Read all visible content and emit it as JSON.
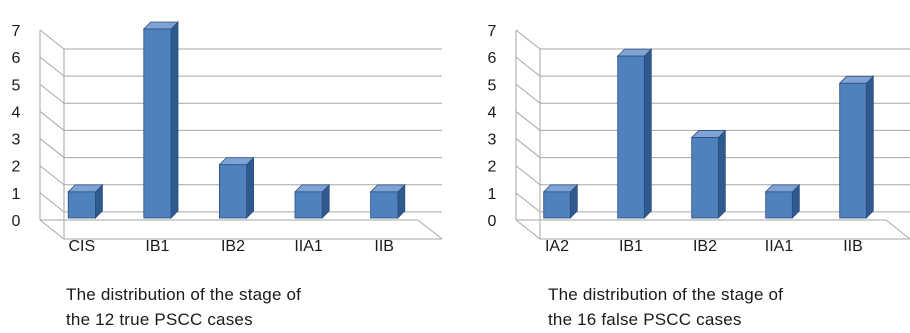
{
  "colors": {
    "bar_front": "#4f81bd",
    "bar_side": "#2f5a8f",
    "bar_top": "#7ea3d4",
    "bar_edge": "#2a4f7d",
    "gridline": "#a6a6a6",
    "axis_text": "#1a1a1a"
  },
  "chart_data": [
    {
      "type": "bar",
      "style": "3d-column",
      "categories": [
        "CIS",
        "IB1",
        "IB2",
        "IIA1",
        "IIB"
      ],
      "values": [
        1,
        7,
        2,
        1,
        1
      ],
      "ylim": [
        0,
        7
      ],
      "yticks": [
        "0",
        "1",
        "2",
        "3",
        "4",
        "5",
        "6",
        "7"
      ],
      "grid": true,
      "legend": "none",
      "caption_line1": "The distribution of the stage of",
      "caption_line2": "the 12 true PSCC cases"
    },
    {
      "type": "bar",
      "style": "3d-column",
      "categories": [
        "IA2",
        "IB1",
        "IB2",
        "IIA1",
        "IIB"
      ],
      "values": [
        1,
        6,
        3,
        1,
        5
      ],
      "ylim": [
        0,
        7
      ],
      "yticks": [
        "0",
        "1",
        "2",
        "3",
        "4",
        "5",
        "6",
        "7"
      ],
      "grid": true,
      "legend": "none",
      "caption_line1": "The distribution of the stage of",
      "caption_line2": "the 16 false PSCC cases"
    }
  ]
}
